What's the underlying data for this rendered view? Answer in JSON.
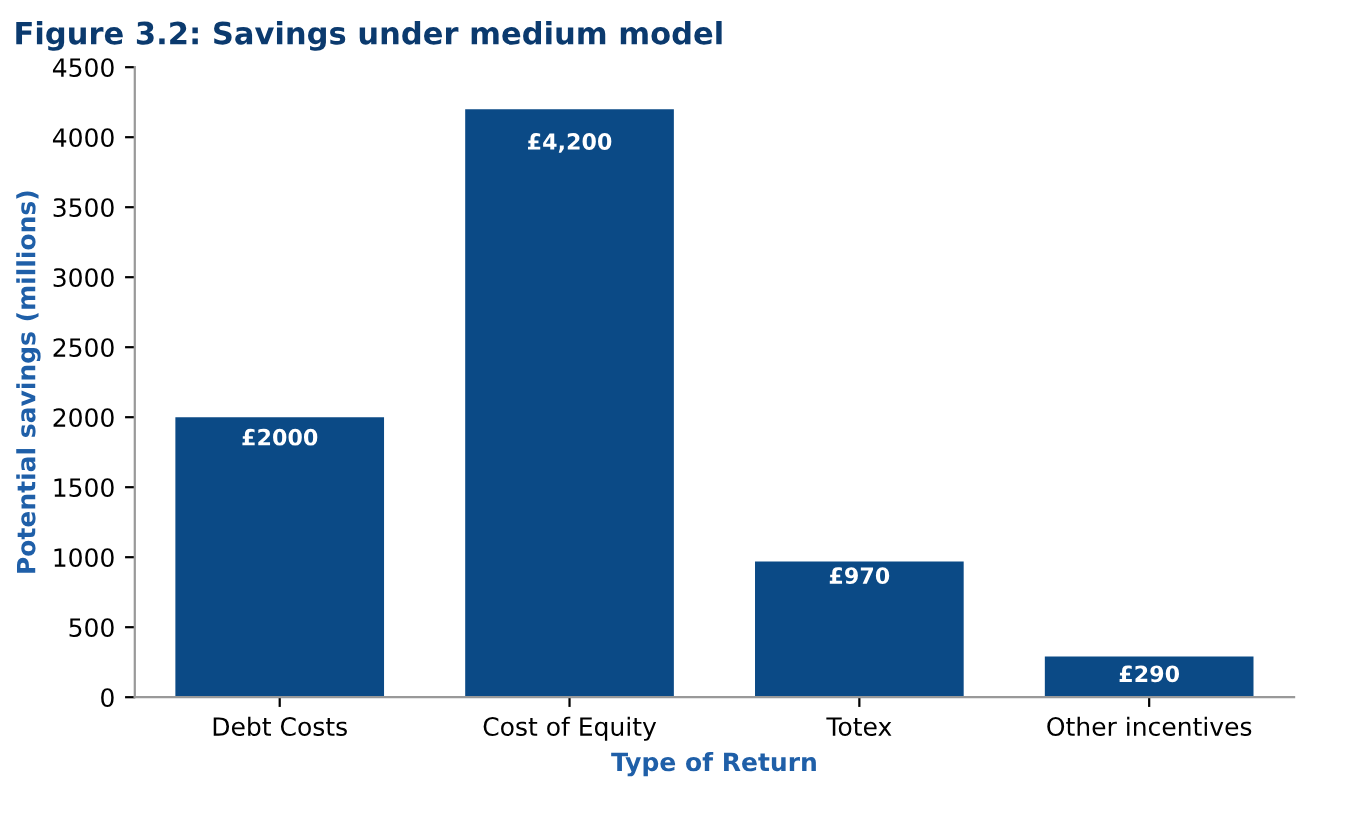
{
  "chart_data": {
    "type": "bar",
    "title": "Figure 3.2: Savings under medium model",
    "categories": [
      "Debt Costs",
      "Cost of Equity",
      "Totex",
      "Other incentives"
    ],
    "values": [
      2000,
      4200,
      970,
      290
    ],
    "value_labels": [
      "£2000",
      "£4,200",
      "£970",
      "£290"
    ],
    "color": "#0b4a86",
    "xlabel": "Type of Return",
    "ylabel": "Potential savings (millions)",
    "ylim": [
      0,
      4500
    ],
    "yticks": [
      0,
      500,
      1000,
      1500,
      2000,
      2500,
      3000,
      3500,
      4000,
      4500
    ],
    "grid": false
  }
}
